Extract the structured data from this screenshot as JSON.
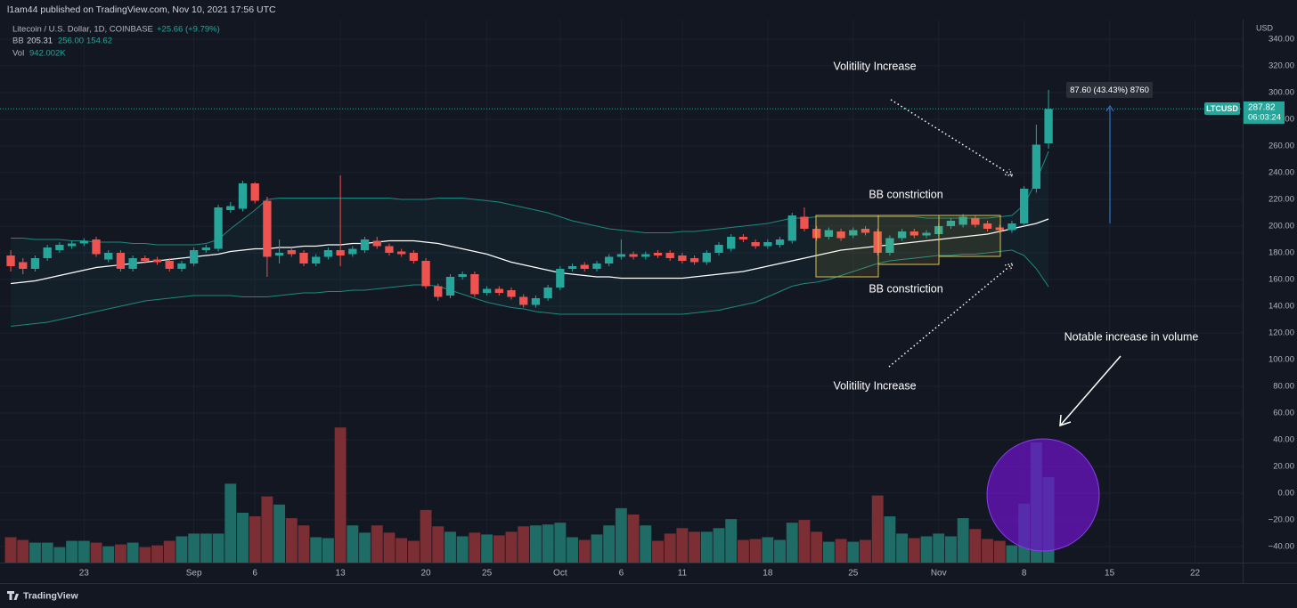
{
  "header": {
    "publisher": "l1am44 published on TradingView.com, Nov 10, 2021 17:56 UTC",
    "logo": "TradingView"
  },
  "legend": {
    "symbol": "Litecoin / U.S. Dollar, 1D, COINBASE",
    "change": "+25.66 (+9.79%)",
    "bb_name": "BB",
    "bb_basis": "205.31",
    "bb_upper": "256.00",
    "bb_lower": "154.62",
    "vol_name": "Vol",
    "vol_value": "942.002K"
  },
  "price_tag": {
    "symbol": "LTCUSD",
    "price": "287.82",
    "countdown": "06:03:24"
  },
  "measure": "87.60 (43.43%) 8760",
  "annotations": [
    "Volitility Increase",
    "BB constriction",
    "BB constriction",
    "Volitility Increase",
    "Notable increase in volume"
  ],
  "chart_data": {
    "type": "candlestick",
    "currency": "USD",
    "up_color": "#26a69a",
    "down_color": "#ef5350",
    "volume_up_color": "#1f6b66",
    "volume_down_color": "#7b2f34",
    "last_price": 287.82,
    "candles": [
      [
        178,
        182,
        166,
        170
      ],
      [
        173,
        176,
        164,
        168
      ],
      [
        168,
        178,
        166,
        176
      ],
      [
        176,
        186,
        174,
        184
      ],
      [
        182,
        188,
        180,
        186
      ],
      [
        185,
        189,
        183,
        187
      ],
      [
        187,
        191,
        185,
        189
      ],
      [
        190,
        192,
        177,
        179
      ],
      [
        175,
        182,
        173,
        180
      ],
      [
        180,
        182,
        166,
        168
      ],
      [
        168,
        178,
        166,
        176
      ],
      [
        176,
        178,
        172,
        174
      ],
      [
        175,
        177,
        171,
        173
      ],
      [
        174,
        176,
        166,
        168
      ],
      [
        168,
        174,
        166,
        172
      ],
      [
        172,
        184,
        170,
        182
      ],
      [
        182,
        186,
        180,
        184
      ],
      [
        183,
        216,
        181,
        214
      ],
      [
        212,
        218,
        210,
        215
      ],
      [
        213,
        234,
        211,
        232
      ],
      [
        232,
        233,
        217,
        219
      ],
      [
        219,
        222,
        162,
        177
      ],
      [
        178,
        190,
        172,
        180
      ],
      [
        182,
        184,
        177,
        179
      ],
      [
        180,
        182,
        170,
        172
      ],
      [
        172,
        179,
        170,
        177
      ],
      [
        177,
        184,
        175,
        182
      ],
      [
        182,
        238,
        170,
        178
      ],
      [
        179,
        185,
        177,
        183
      ],
      [
        182,
        192,
        180,
        190
      ],
      [
        189,
        192,
        183,
        185
      ],
      [
        185,
        187,
        178,
        180
      ],
      [
        181,
        183,
        177,
        179
      ],
      [
        180,
        182,
        172,
        174
      ],
      [
        174,
        176,
        153,
        155
      ],
      [
        155,
        157,
        144,
        147
      ],
      [
        148,
        164,
        146,
        162
      ],
      [
        162,
        166,
        160,
        164
      ],
      [
        164,
        166,
        147,
        149
      ],
      [
        150,
        155,
        148,
        153
      ],
      [
        153,
        155,
        148,
        150
      ],
      [
        152,
        154,
        145,
        147
      ],
      [
        147,
        149,
        139,
        141
      ],
      [
        141,
        148,
        139,
        146
      ],
      [
        146,
        156,
        144,
        154
      ],
      [
        154,
        170,
        152,
        168
      ],
      [
        168,
        172,
        166,
        170
      ],
      [
        171,
        173,
        166,
        168
      ],
      [
        168,
        174,
        166,
        172
      ],
      [
        172,
        179,
        170,
        177
      ],
      [
        177,
        190,
        175,
        179
      ],
      [
        179,
        181,
        175,
        177
      ],
      [
        177,
        181,
        175,
        179
      ],
      [
        180,
        182,
        176,
        178
      ],
      [
        180,
        182,
        174,
        176
      ],
      [
        178,
        180,
        172,
        174
      ],
      [
        176,
        178,
        171,
        173
      ],
      [
        173,
        182,
        171,
        180
      ],
      [
        180,
        188,
        178,
        186
      ],
      [
        183,
        194,
        181,
        192
      ],
      [
        192,
        194,
        188,
        190
      ],
      [
        188,
        190,
        183,
        185
      ],
      [
        185,
        190,
        183,
        188
      ],
      [
        186,
        192,
        184,
        190
      ],
      [
        189,
        210,
        187,
        208
      ],
      [
        207,
        214,
        196,
        198
      ],
      [
        198,
        200,
        189,
        191
      ],
      [
        192,
        199,
        190,
        197
      ],
      [
        196,
        198,
        189,
        191
      ],
      [
        193,
        199,
        191,
        197
      ],
      [
        198,
        200,
        193,
        195
      ],
      [
        196,
        198,
        178,
        180
      ],
      [
        180,
        193,
        178,
        191
      ],
      [
        191,
        198,
        189,
        196
      ],
      [
        196,
        198,
        191,
        193
      ],
      [
        193,
        197,
        191,
        195
      ],
      [
        194,
        202,
        192,
        200
      ],
      [
        200,
        206,
        198,
        204
      ],
      [
        201,
        209,
        199,
        207
      ],
      [
        206,
        208,
        199,
        201
      ],
      [
        202,
        204,
        196,
        198
      ],
      [
        199,
        201,
        195,
        197
      ],
      [
        197,
        204,
        195,
        202
      ],
      [
        202,
        230,
        200,
        228
      ],
      [
        228,
        276,
        225,
        261
      ],
      [
        262,
        302,
        258,
        287.82
      ]
    ],
    "volume": [
      280,
      250,
      220,
      220,
      170,
      240,
      240,
      220,
      180,
      200,
      220,
      170,
      190,
      240,
      290,
      320,
      320,
      320,
      870,
      550,
      510,
      730,
      640,
      490,
      410,
      280,
      270,
      1490,
      410,
      330,
      410,
      330,
      270,
      240,
      580,
      400,
      340,
      290,
      330,
      310,
      300,
      340,
      400,
      410,
      420,
      440,
      280,
      250,
      310,
      410,
      600,
      530,
      410,
      240,
      320,
      380,
      340,
      340,
      380,
      480,
      250,
      260,
      280,
      250,
      440,
      470,
      340,
      230,
      260,
      230,
      250,
      740,
      510,
      320,
      270,
      290,
      320,
      290,
      490,
      370,
      260,
      240,
      190,
      650,
      1325,
      942.002
    ],
    "volume_lim": [
      0,
      1600
    ],
    "bollinger": {
      "basis": [
        157,
        158,
        159,
        161,
        163,
        165,
        167,
        169,
        170,
        171,
        172,
        173,
        174,
        175,
        176,
        177,
        178,
        179,
        181,
        182,
        183,
        183,
        184,
        184,
        185,
        185,
        186,
        186,
        187,
        187,
        188,
        189,
        189,
        189,
        188,
        187,
        185,
        183,
        181,
        179,
        176,
        173,
        171,
        169,
        167,
        165,
        164,
        163,
        162,
        162,
        161,
        161,
        161,
        161,
        161,
        161,
        162,
        163,
        164,
        165,
        166,
        168,
        170,
        172,
        174,
        176,
        178,
        180,
        182,
        183,
        184,
        185,
        186,
        187,
        188,
        189,
        190,
        191,
        192,
        193,
        194,
        196,
        198,
        200,
        202,
        205.31
      ],
      "upper": [
        191,
        191,
        190,
        190,
        190,
        189,
        189,
        188,
        188,
        188,
        187,
        187,
        186,
        186,
        186,
        186,
        187,
        190,
        198,
        205,
        212,
        220,
        221,
        221,
        221,
        221,
        221,
        221,
        221,
        221,
        221,
        221,
        220,
        220,
        220,
        221,
        221,
        221,
        220,
        219,
        218,
        216,
        214,
        212,
        210,
        207,
        204,
        202,
        200,
        198,
        197,
        196,
        195,
        195,
        195,
        196,
        196,
        197,
        198,
        199,
        200,
        201,
        202,
        204,
        206,
        206,
        207,
        207,
        207,
        207,
        207,
        207,
        207,
        207,
        207,
        206,
        206,
        206,
        206,
        206,
        206,
        207,
        208,
        216,
        234,
        256
      ],
      "lower": [
        125,
        126,
        127,
        128,
        130,
        132,
        134,
        136,
        138,
        140,
        142,
        144,
        145,
        146,
        147,
        148,
        148,
        148,
        148,
        147,
        147,
        147,
        148,
        149,
        150,
        150,
        151,
        151,
        152,
        152,
        153,
        154,
        155,
        156,
        156,
        155,
        152,
        149,
        146,
        143,
        141,
        139,
        138,
        136,
        135,
        134,
        134,
        134,
        134,
        134,
        134,
        134,
        134,
        134,
        134,
        134,
        135,
        136,
        137,
        139,
        141,
        143,
        147,
        151,
        155,
        157,
        158,
        160,
        163,
        166,
        169,
        172,
        174,
        175,
        176,
        177,
        178,
        178,
        179,
        179,
        180,
        181,
        182,
        178,
        168,
        154.62
      ]
    },
    "ylim": [
      -52,
      354.67
    ],
    "yticks": [
      {
        "value": 340,
        "label": "340.00"
      },
      {
        "value": 320,
        "label": "320.00"
      },
      {
        "value": 300,
        "label": "300.00"
      },
      {
        "value": 280,
        "label": "280.00"
      },
      {
        "value": 260,
        "label": "260.00"
      },
      {
        "value": 240,
        "label": "240.00"
      },
      {
        "value": 220,
        "label": "220.00"
      },
      {
        "value": 200,
        "label": "200.00"
      },
      {
        "value": 180,
        "label": "180.00"
      },
      {
        "value": 160,
        "label": "160.00"
      },
      {
        "value": 140,
        "label": "140.00"
      },
      {
        "value": 120,
        "label": "120.00"
      },
      {
        "value": 100,
        "label": "100.00"
      },
      {
        "value": 80,
        "label": "80.00"
      },
      {
        "value": 60,
        "label": "60.00"
      },
      {
        "value": 40,
        "label": "40.00"
      },
      {
        "value": 20,
        "label": "20.00"
      },
      {
        "value": 0,
        "label": "0.00"
      },
      {
        "value": -20,
        "label": "−20.00"
      },
      {
        "value": -40,
        "label": "−40.00"
      }
    ],
    "xlim": [
      -0.88,
      100.9
    ],
    "xticks": [
      {
        "value": 6,
        "label": "23"
      },
      {
        "value": 15,
        "label": "Sep"
      },
      {
        "value": 20,
        "label": "6"
      },
      {
        "value": 27,
        "label": "13"
      },
      {
        "value": 34,
        "label": "20"
      },
      {
        "value": 39,
        "label": "25"
      },
      {
        "value": 45,
        "label": "Oct"
      },
      {
        "value": 50,
        "label": "6"
      },
      {
        "value": 55,
        "label": "11"
      },
      {
        "value": 62,
        "label": "18"
      },
      {
        "value": 69,
        "label": "25"
      },
      {
        "value": 76,
        "label": "Nov"
      },
      {
        "value": 83,
        "label": "8"
      },
      {
        "value": 90,
        "label": "15"
      },
      {
        "value": 97,
        "label": "22"
      }
    ],
    "grid": true
  }
}
